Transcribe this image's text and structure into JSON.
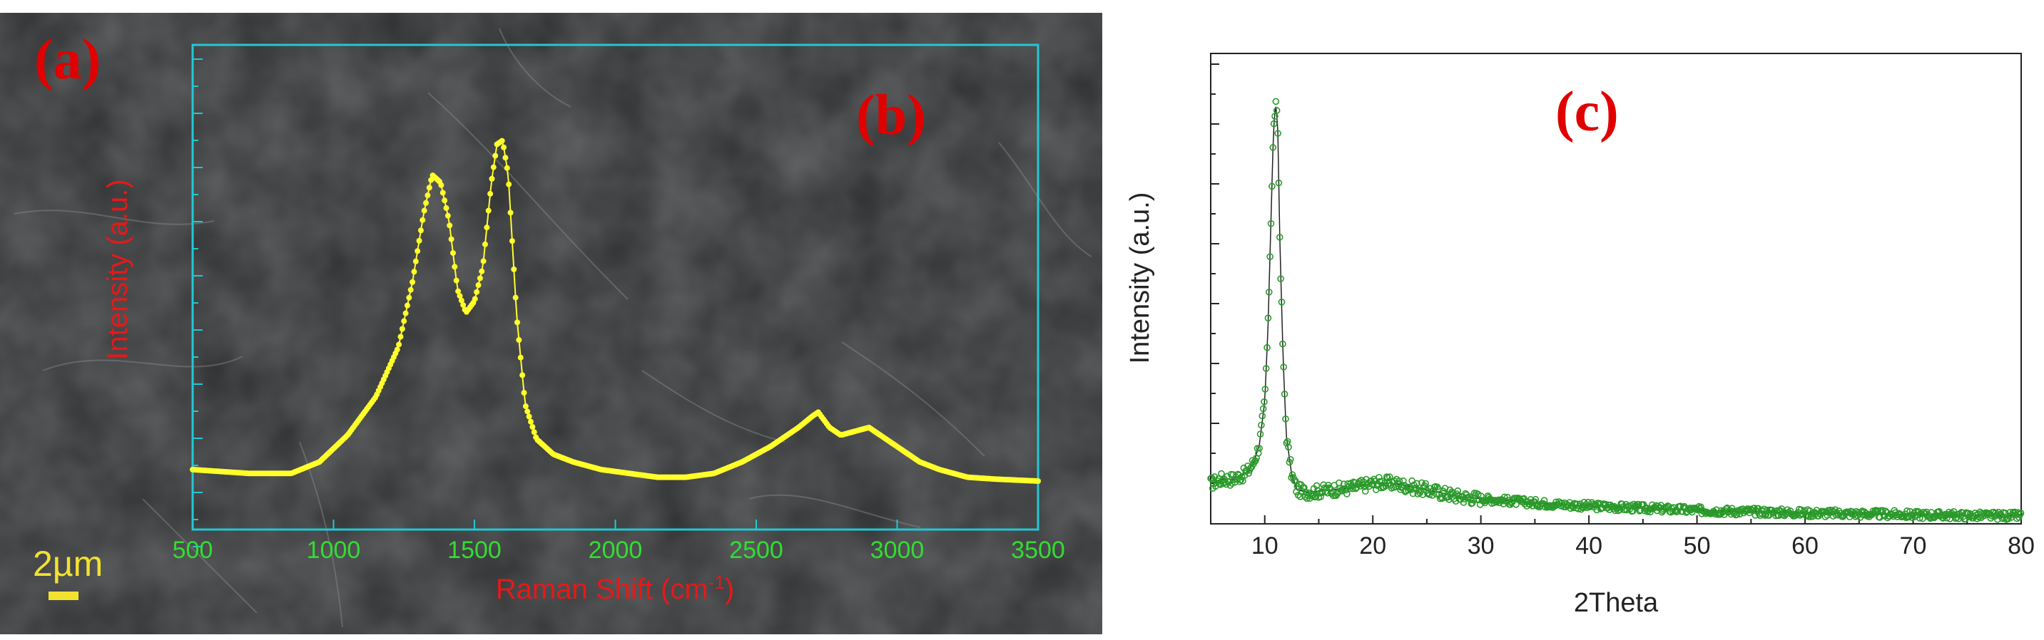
{
  "colors": {
    "sem_background": "#2e2f30",
    "raman_frame": "#22c8d4",
    "raman_series": "#ffff2a",
    "raman_tick_label": "#33dd33",
    "raman_axis_label": "#e31a1a",
    "panel_label": "#e00000",
    "scale_bar": "#f2e230",
    "xrd_series": "#2a9a2a",
    "xrd_axes": "#222222"
  },
  "panels": {
    "a": "(a)",
    "b": "(b)",
    "c": "(c)"
  },
  "scale_bar": {
    "text": "2µm"
  },
  "chart_data": [
    {
      "id": "raman",
      "type": "scatter",
      "title": "",
      "xlabel_main": "Raman Shift (cm",
      "xlabel_sup": "-1",
      "xlabel_close": ")",
      "ylabel": "Intensity (a.u.)",
      "xlim": [
        500,
        3500
      ],
      "ylim": [
        0,
        1
      ],
      "xticks": [
        "500",
        "1000",
        "1500",
        "2000",
        "2500",
        "3000",
        "3500"
      ],
      "series": [
        {
          "name": "Raman",
          "x": [
            500,
            700,
            850,
            950,
            1050,
            1150,
            1230,
            1280,
            1320,
            1350,
            1380,
            1410,
            1440,
            1470,
            1500,
            1530,
            1560,
            1580,
            1600,
            1620,
            1650,
            1680,
            1720,
            1780,
            1850,
            1950,
            2050,
            2150,
            2250,
            2350,
            2450,
            2550,
            2650,
            2700,
            2720,
            2760,
            2800,
            2850,
            2900,
            2920,
            2960,
            3000,
            3080,
            3150,
            3250,
            3350,
            3500
          ],
          "y": [
            0.03,
            0.02,
            0.02,
            0.05,
            0.12,
            0.22,
            0.35,
            0.52,
            0.7,
            0.8,
            0.78,
            0.68,
            0.5,
            0.44,
            0.47,
            0.56,
            0.78,
            0.88,
            0.89,
            0.8,
            0.43,
            0.2,
            0.11,
            0.07,
            0.05,
            0.03,
            0.02,
            0.01,
            0.01,
            0.02,
            0.05,
            0.09,
            0.14,
            0.17,
            0.18,
            0.14,
            0.12,
            0.13,
            0.14,
            0.13,
            0.11,
            0.09,
            0.05,
            0.03,
            0.01,
            0.005,
            0.0
          ]
        }
      ]
    },
    {
      "id": "xrd",
      "type": "scatter",
      "title": "",
      "xlabel": "2Theta",
      "ylabel": "Intensity (a.u.)",
      "xlim": [
        5,
        80
      ],
      "ylim": [
        0,
        1
      ],
      "xticks": [
        "10",
        "20",
        "30",
        "40",
        "50",
        "60",
        "70",
        "80"
      ],
      "series": [
        {
          "name": "XRD",
          "x": [
            5,
            6,
            7,
            8,
            8.5,
            9,
            9.5,
            10,
            10.3,
            10.6,
            10.8,
            11,
            11.2,
            11.4,
            11.7,
            12,
            12.5,
            13,
            14,
            15,
            16,
            18,
            20,
            21,
            22,
            24,
            26,
            28,
            30,
            35,
            40,
            45,
            50,
            55,
            60,
            65,
            70,
            75,
            80
          ],
          "y": [
            0.09,
            0.1,
            0.1,
            0.11,
            0.12,
            0.14,
            0.18,
            0.28,
            0.45,
            0.72,
            0.9,
            0.97,
            0.92,
            0.65,
            0.38,
            0.2,
            0.11,
            0.075,
            0.07,
            0.072,
            0.075,
            0.08,
            0.09,
            0.092,
            0.09,
            0.08,
            0.07,
            0.06,
            0.055,
            0.045,
            0.038,
            0.033,
            0.028,
            0.025,
            0.022,
            0.02,
            0.018,
            0.016,
            0.015
          ]
        }
      ]
    }
  ]
}
